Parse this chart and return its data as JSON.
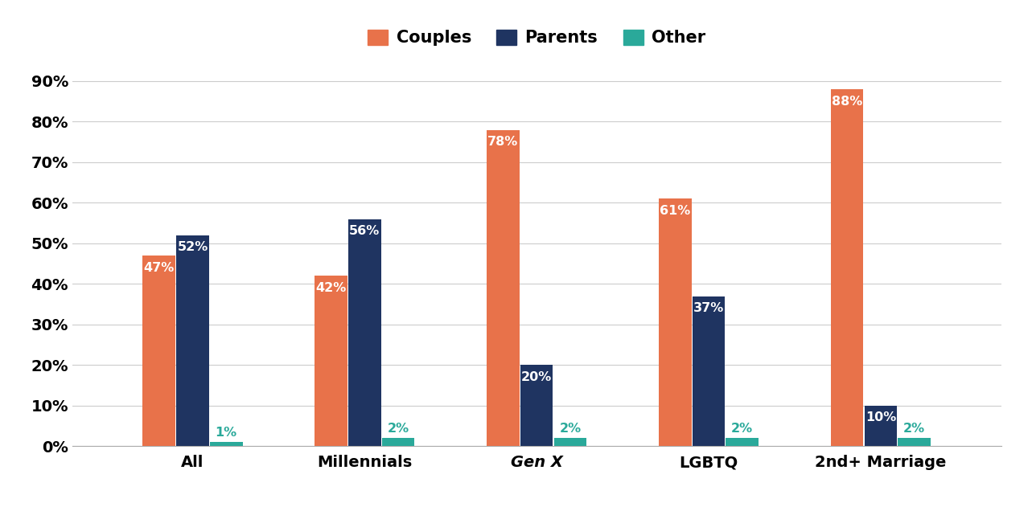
{
  "categories": [
    "All",
    "Millennials",
    "Gen X",
    "LGBTQ",
    "2nd+ Marriage"
  ],
  "series": {
    "Couples": [
      47,
      42,
      78,
      61,
      88
    ],
    "Parents": [
      52,
      56,
      20,
      37,
      10
    ],
    "Other": [
      1,
      2,
      2,
      2,
      2
    ]
  },
  "colors": {
    "Couples": "#E8724A",
    "Parents": "#1F3461",
    "Other": "#2AA99A"
  },
  "ylim": [
    0,
    95
  ],
  "yticks": [
    0,
    10,
    20,
    30,
    40,
    50,
    60,
    70,
    80,
    90
  ],
  "ytick_labels": [
    "0%",
    "10%",
    "20%",
    "30%",
    "40%",
    "50%",
    "60%",
    "70%",
    "80%",
    "90%"
  ],
  "bar_width": 0.19,
  "label_fontsize": 11.5,
  "tick_fontsize": 14,
  "legend_fontsize": 15,
  "background_color": "#FFFFFF",
  "grid_color": "#CCCCCC",
  "value_label_color_other": "#2AA99A",
  "series_names": [
    "Couples",
    "Parents",
    "Other"
  ]
}
